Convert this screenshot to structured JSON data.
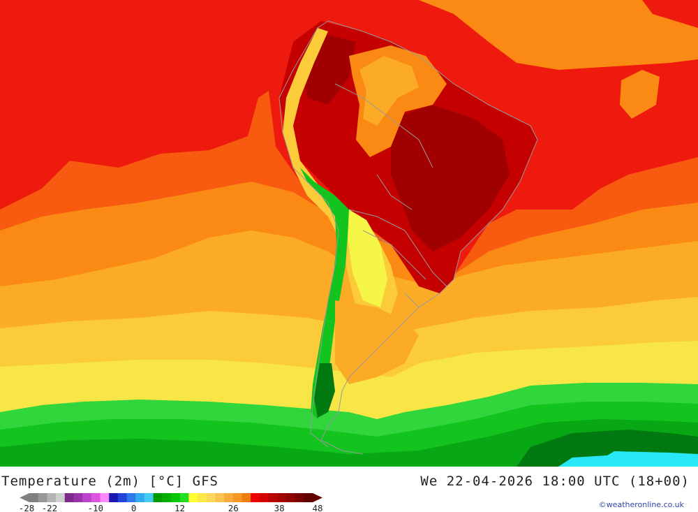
{
  "title": "Temperature (2m) [°C] GFS",
  "valid_time": "We 22-04-2026 18:00 UTC (18+00)",
  "credit": "©weatheronline.co.uk",
  "colors": {
    "deep_red": "#a00000",
    "dark_red": "#c40000",
    "red": "#ee1a0e",
    "orange_red": "#f85a10",
    "orange": "#fb8a14",
    "light_orange": "#fbab26",
    "yellow_orange": "#fbcb3a",
    "yellow": "#f8e646",
    "bright_yellow": "#f6f646",
    "light_green": "#30d63c",
    "green": "#14c41e",
    "mid_green": "#08a814",
    "dark_green": "#007a10",
    "cyan": "#27e8f6",
    "border": "#9a9a9a"
  },
  "legend": {
    "ticks": [
      "-28",
      "-22",
      "-10",
      "0",
      "12",
      "26",
      "38",
      "48"
    ],
    "swatches": [
      "#7f7f7f",
      "#979797",
      "#b3b3b3",
      "#cfcfcf",
      "#7e2a8a",
      "#9933aa",
      "#bb44cc",
      "#dd55dd",
      "#ff88ff",
      "#1a1ab0",
      "#2244dd",
      "#3377ee",
      "#33aaee",
      "#44ccf4",
      "#009900",
      "#00b000",
      "#00c800",
      "#22dd22",
      "#ffff33",
      "#fde84a",
      "#fbd85a",
      "#fbc250",
      "#f8ac3c",
      "#f89824",
      "#f07c10",
      "#ee0000",
      "#d20000",
      "#bb0000",
      "#a40000",
      "#8e0000",
      "#780000",
      "#620000"
    ]
  }
}
